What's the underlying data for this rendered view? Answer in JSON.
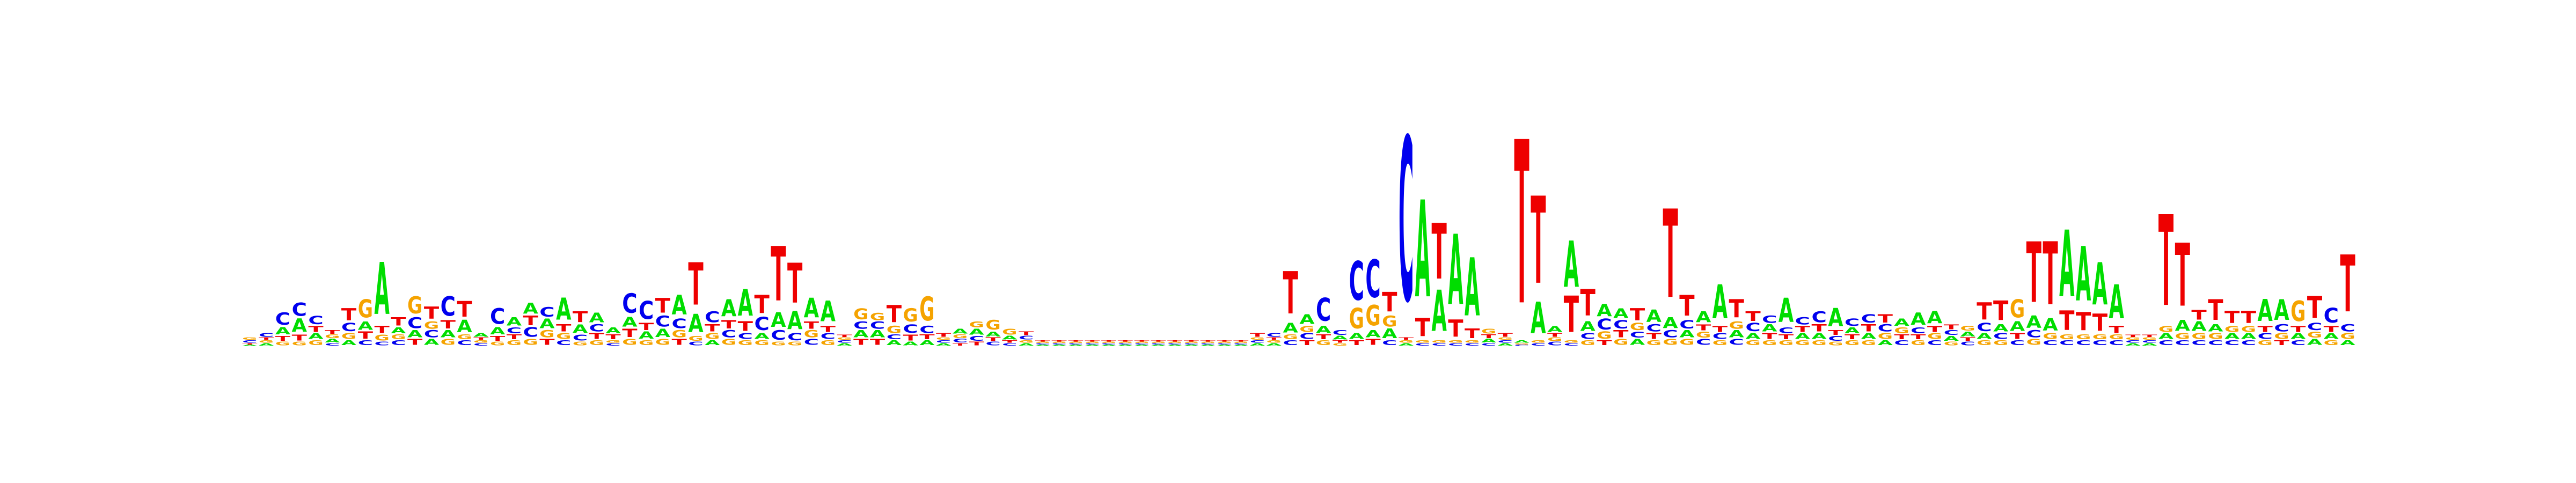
{
  "chart_data": {
    "type": "sequence-logo",
    "title": "",
    "xlabel": "",
    "ylabel": "",
    "alphabet": [
      "A",
      "C",
      "G",
      "T"
    ],
    "colors": {
      "A": "#00dd00",
      "C": "#0000ee",
      "G": "#f5a300",
      "T": "#ee0000"
    },
    "ylim": [
      0,
      1.4
    ],
    "heights": [
      [
        0.01,
        0.02,
        0.02,
        0.01
      ],
      [
        0.02,
        0.03,
        0.02,
        0.02
      ],
      [
        0.06,
        0.1,
        0.03,
        0.04
      ],
      [
        0.11,
        0.11,
        0.03,
        0.05
      ],
      [
        0.05,
        0.07,
        0.04,
        0.05
      ],
      [
        0.03,
        0.02,
        0.03,
        0.03
      ],
      [
        0.04,
        0.07,
        0.05,
        0.1
      ],
      [
        0.07,
        0.04,
        0.15,
        0.06
      ],
      [
        0.43,
        0.03,
        0.05,
        0.06
      ],
      [
        0.05,
        0.04,
        0.04,
        0.07
      ],
      [
        0.06,
        0.09,
        0.14,
        0.05
      ],
      [
        0.05,
        0.06,
        0.06,
        0.1
      ],
      [
        0.06,
        0.16,
        0.05,
        0.07
      ],
      [
        0.1,
        0.04,
        0.04,
        0.13
      ],
      [
        0.03,
        0.02,
        0.02,
        0.02
      ],
      [
        0.06,
        0.13,
        0.03,
        0.04
      ],
      [
        0.07,
        0.05,
        0.04,
        0.04
      ],
      [
        0.09,
        0.08,
        0.05,
        0.08
      ],
      [
        0.08,
        0.08,
        0.06,
        0.05
      ],
      [
        0.18,
        0.04,
        0.05,
        0.06
      ],
      [
        0.07,
        0.05,
        0.03,
        0.09
      ],
      [
        0.08,
        0.06,
        0.04,
        0.05
      ],
      [
        0.05,
        0.02,
        0.02,
        0.04
      ],
      [
        0.08,
        0.16,
        0.05,
        0.07
      ],
      [
        0.06,
        0.15,
        0.04,
        0.06
      ],
      [
        0.07,
        0.09,
        0.05,
        0.12
      ],
      [
        0.16,
        0.08,
        0.06,
        0.05
      ],
      [
        0.15,
        0.03,
        0.04,
        0.35
      ],
      [
        0.04,
        0.09,
        0.05,
        0.06
      ],
      [
        0.14,
        0.06,
        0.05,
        0.07
      ],
      [
        0.22,
        0.05,
        0.04,
        0.08
      ],
      [
        0.05,
        0.11,
        0.04,
        0.15
      ],
      [
        0.12,
        0.08,
        0.03,
        0.45
      ],
      [
        0.15,
        0.06,
        0.03,
        0.33
      ],
      [
        0.16,
        0.05,
        0.06,
        0.06
      ],
      [
        0.17,
        0.05,
        0.04,
        0.05
      ],
      [
        0.02,
        0.02,
        0.02,
        0.02
      ],
      [
        0.06,
        0.06,
        0.09,
        0.05
      ],
      [
        0.06,
        0.06,
        0.06,
        0.05
      ],
      [
        0.04,
        0.04,
        0.06,
        0.14
      ],
      [
        0.03,
        0.07,
        0.11,
        0.05
      ],
      [
        0.04,
        0.06,
        0.2,
        0.04
      ],
      [
        0.02,
        0.02,
        0.02,
        0.03
      ],
      [
        0.04,
        0.03,
        0.03,
        0.02
      ],
      [
        0.05,
        0.04,
        0.05,
        0.03
      ],
      [
        0.04,
        0.03,
        0.08,
        0.03
      ],
      [
        0.03,
        0.02,
        0.05,
        0.02
      ],
      [
        0.02,
        0.03,
        0.02,
        0.03
      ],
      [
        0.01,
        0.01,
        0.01,
        0.01
      ],
      [
        0.01,
        0.01,
        0.01,
        0.01
      ],
      [
        0.01,
        0.01,
        0.01,
        0.01
      ],
      [
        0.01,
        0.01,
        0.01,
        0.01
      ],
      [
        0.01,
        0.01,
        0.01,
        0.01
      ],
      [
        0.01,
        0.01,
        0.01,
        0.01
      ],
      [
        0.01,
        0.01,
        0.01,
        0.01
      ],
      [
        0.01,
        0.01,
        0.01,
        0.01
      ],
      [
        0.01,
        0.01,
        0.01,
        0.01
      ],
      [
        0.01,
        0.01,
        0.01,
        0.01
      ],
      [
        0.01,
        0.01,
        0.01,
        0.01
      ],
      [
        0.01,
        0.01,
        0.01,
        0.01
      ],
      [
        0.01,
        0.01,
        0.01,
        0.01
      ],
      [
        0.02,
        0.02,
        0.02,
        0.03
      ],
      [
        0.02,
        0.03,
        0.02,
        0.02
      ],
      [
        0.08,
        0.04,
        0.04,
        0.35
      ],
      [
        0.08,
        0.05,
        0.05,
        0.04
      ],
      [
        0.06,
        0.19,
        0.04,
        0.04
      ],
      [
        0.03,
        0.04,
        0.02,
        0.02
      ],
      [
        0.05,
        0.32,
        0.17,
        0.04
      ],
      [
        0.06,
        0.31,
        0.17,
        0.05
      ],
      [
        0.08,
        0.04,
        0.09,
        0.16
      ],
      [
        0.02,
        1.35,
        0.02,
        0.02
      ],
      [
        0.8,
        0.02,
        0.02,
        0.15
      ],
      [
        0.34,
        0.02,
        0.02,
        0.46
      ],
      [
        0.58,
        0.02,
        0.02,
        0.14
      ],
      [
        0.48,
        0.02,
        0.02,
        0.08
      ],
      [
        0.03,
        0.02,
        0.04,
        0.03
      ],
      [
        0.02,
        0.02,
        0.02,
        0.03
      ],
      [
        0.02,
        0.01,
        0.01,
        1.35
      ],
      [
        0.26,
        0.02,
        0.02,
        0.72
      ],
      [
        0.05,
        0.03,
        0.03,
        0.03
      ],
      [
        0.38,
        0.02,
        0.02,
        0.3
      ],
      [
        0.08,
        0.05,
        0.04,
        0.22
      ],
      [
        0.1,
        0.09,
        0.06,
        0.04
      ],
      [
        0.08,
        0.07,
        0.05,
        0.06
      ],
      [
        0.05,
        0.05,
        0.06,
        0.1
      ],
      [
        0.1,
        0.06,
        0.04,
        0.05
      ],
      [
        0.09,
        0.06,
        0.05,
        0.73
      ],
      [
        0.06,
        0.07,
        0.05,
        0.17
      ],
      [
        0.09,
        0.05,
        0.05,
        0.05
      ],
      [
        0.28,
        0.05,
        0.04,
        0.05
      ],
      [
        0.06,
        0.05,
        0.06,
        0.15
      ],
      [
        0.05,
        0.07,
        0.04,
        0.08
      ],
      [
        0.06,
        0.06,
        0.04,
        0.05
      ],
      [
        0.2,
        0.05,
        0.04,
        0.04
      ],
      [
        0.05,
        0.06,
        0.04,
        0.05
      ],
      [
        0.05,
        0.09,
        0.04,
        0.06
      ],
      [
        0.15,
        0.04,
        0.03,
        0.04
      ],
      [
        0.05,
        0.06,
        0.04,
        0.04
      ],
      [
        0.05,
        0.07,
        0.04,
        0.06
      ],
      [
        0.04,
        0.06,
        0.05,
        0.07
      ],
      [
        0.06,
        0.04,
        0.05,
        0.04
      ],
      [
        0.1,
        0.05,
        0.04,
        0.04
      ],
      [
        0.1,
        0.04,
        0.05,
        0.05
      ],
      [
        0.04,
        0.04,
        0.03,
        0.04
      ],
      [
        0.04,
        0.03,
        0.04,
        0.03
      ],
      [
        0.05,
        0.07,
        0.04,
        0.14
      ],
      [
        0.06,
        0.05,
        0.04,
        0.16
      ],
      [
        0.08,
        0.04,
        0.15,
        0.05
      ],
      [
        0.1,
        0.06,
        0.05,
        0.5
      ],
      [
        0.1,
        0.04,
        0.05,
        0.52
      ],
      [
        0.55,
        0.04,
        0.04,
        0.16
      ],
      [
        0.45,
        0.04,
        0.04,
        0.15
      ],
      [
        0.35,
        0.04,
        0.04,
        0.14
      ],
      [
        0.28,
        0.04,
        0.04,
        0.06
      ],
      [
        0.02,
        0.02,
        0.02,
        0.02
      ],
      [
        0.02,
        0.02,
        0.02,
        0.02
      ],
      [
        0.05,
        0.04,
        0.05,
        0.75
      ],
      [
        0.09,
        0.04,
        0.05,
        0.52
      ],
      [
        0.08,
        0.04,
        0.05,
        0.08
      ],
      [
        0.06,
        0.04,
        0.05,
        0.17
      ],
      [
        0.05,
        0.04,
        0.05,
        0.1
      ],
      [
        0.05,
        0.04,
        0.05,
        0.1
      ],
      [
        0.18,
        0.05,
        0.04,
        0.05
      ],
      [
        0.17,
        0.06,
        0.05,
        0.04
      ],
      [
        0.05,
        0.04,
        0.17,
        0.05
      ],
      [
        0.05,
        0.06,
        0.05,
        0.18
      ],
      [
        0.05,
        0.12,
        0.04,
        0.05
      ],
      [
        0.04,
        0.06,
        0.05,
        0.47
      ]
    ]
  }
}
